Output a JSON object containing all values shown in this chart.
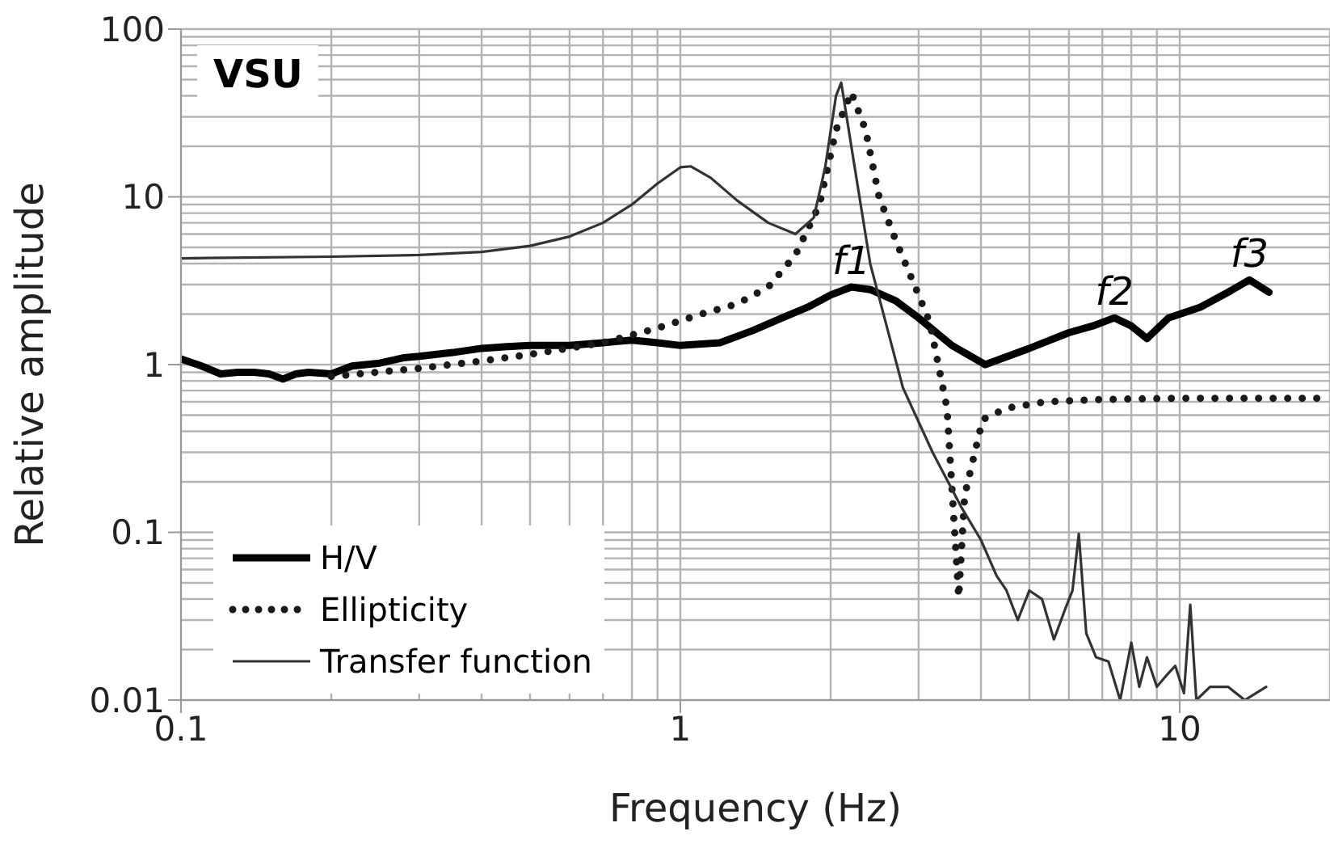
{
  "chart_data": {
    "type": "line",
    "xlabel": "Frequency (Hz)",
    "ylabel": "Relative amplitude",
    "log": "xy",
    "xlim": [
      0.1,
      20
    ],
    "ylim": [
      0.01,
      100
    ],
    "xticks": [
      0.1,
      1,
      10
    ],
    "yticks": [
      0.01,
      0.1,
      1,
      10,
      100
    ],
    "grid": true,
    "legend": "bottom left",
    "annotations": [
      "VSU",
      {
        "text": "f1",
        "x": 2.2,
        "y": 2.9
      },
      {
        "text": "f2",
        "x": 7.4,
        "y": 1.9
      },
      {
        "text": "f3",
        "x": 13.8,
        "y": 3.2
      }
    ],
    "series": [
      {
        "name": "H/V",
        "color": "#000000",
        "line_style": "solid",
        "x": [
          0.1,
          0.11,
          0.12,
          0.13,
          0.14,
          0.15,
          0.16,
          0.17,
          0.18,
          0.2,
          0.22,
          0.25,
          0.28,
          0.3,
          0.35,
          0.4,
          0.45,
          0.5,
          0.6,
          0.7,
          0.8,
          0.9,
          1,
          1.2,
          1.4,
          1.6,
          1.8,
          2,
          2.2,
          2.4,
          2.7,
          3,
          3.5,
          4.08,
          5,
          6,
          6.7,
          7.4,
          8,
          8.6,
          9.5,
          11,
          12.5,
          13.8,
          15.1
        ],
        "values": [
          1.08,
          0.98,
          0.88,
          0.9,
          0.9,
          0.88,
          0.82,
          0.88,
          0.9,
          0.88,
          0.98,
          1.02,
          1.1,
          1.12,
          1.18,
          1.25,
          1.28,
          1.3,
          1.3,
          1.35,
          1.4,
          1.35,
          1.3,
          1.35,
          1.6,
          1.9,
          2.2,
          2.6,
          2.9,
          2.8,
          2.4,
          1.9,
          1.3,
          1.0,
          1.25,
          1.55,
          1.7,
          1.9,
          1.7,
          1.43,
          1.9,
          2.2,
          2.7,
          3.2,
          2.7
        ]
      },
      {
        "name": "Ellipticity",
        "color": "#1a1a1a",
        "line_style": "dotted",
        "x": [
          0.2,
          0.3,
          0.4,
          0.5,
          0.7,
          0.9,
          1.1,
          1.3,
          1.5,
          1.7,
          1.9,
          2.05,
          2.2,
          2.35,
          2.5,
          2.7,
          3.0,
          3.16,
          3.42,
          3.61,
          3.71,
          4.03,
          4.5,
          5.4,
          7,
          10,
          14,
          20
        ],
        "values": [
          0.85,
          0.95,
          1.05,
          1.15,
          1.35,
          1.65,
          2.0,
          2.3,
          2.9,
          4.5,
          9,
          25,
          42,
          25,
          10,
          5.5,
          2.6,
          1.78,
          0.55,
          0.041,
          0.166,
          0.47,
          0.55,
          0.6,
          0.62,
          0.63,
          0.63,
          0.63
        ]
      },
      {
        "name": "Transfer function",
        "color": "#333333",
        "line_style": "solid",
        "x": [
          0.1,
          0.2,
          0.3,
          0.4,
          0.5,
          0.6,
          0.7,
          0.8,
          0.9,
          1.0,
          1.05,
          1.15,
          1.3,
          1.5,
          1.7,
          1.85,
          1.95,
          2.05,
          2.1,
          2.2,
          2.4,
          2.79,
          3.2,
          3.66,
          4.0,
          4.3,
          4.5,
          4.74,
          5.0,
          5.3,
          5.6,
          5.9,
          6.1,
          6.28,
          6.5,
          6.8,
          7.2,
          7.6,
          8.0,
          8.3,
          8.6,
          9.0,
          9.4,
          9.8,
          10.2,
          10.5,
          10.8,
          11.5,
          12.5,
          13.5,
          14.9
        ],
        "values": [
          4.3,
          4.4,
          4.5,
          4.7,
          5.1,
          5.8,
          7.0,
          9.0,
          12,
          15,
          15.2,
          13,
          9.5,
          7,
          6.0,
          7.5,
          15,
          40,
          48,
          20,
          4,
          0.73,
          0.3,
          0.14,
          0.09,
          0.055,
          0.045,
          0.03,
          0.045,
          0.04,
          0.023,
          0.035,
          0.045,
          0.098,
          0.025,
          0.018,
          0.017,
          0.01,
          0.022,
          0.012,
          0.018,
          0.012,
          0.014,
          0.016,
          0.011,
          0.037,
          0.01,
          0.012,
          0.012,
          0.01,
          0.012
        ]
      }
    ]
  }
}
